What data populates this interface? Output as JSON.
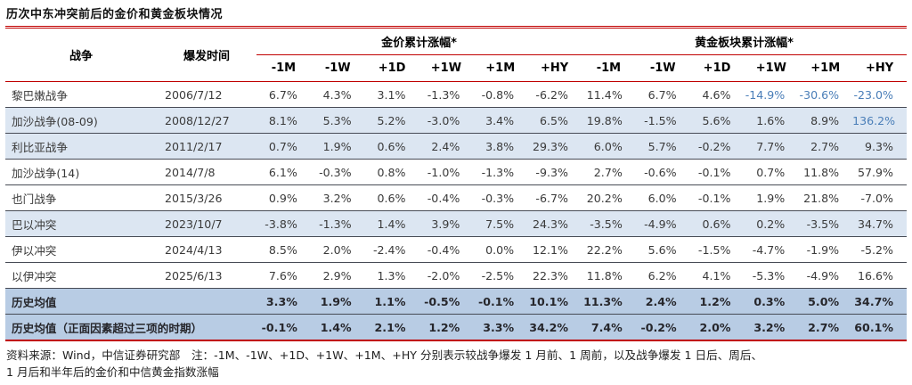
{
  "title": "历次中东冲突前后的金价和黄金板块情况",
  "colors": {
    "accent_red": "#C00000",
    "row_light_blue": "#DCE6F2",
    "row_medium_blue": "#B8CCE4",
    "highlight_blue_text": "#4A7EB8",
    "row_divider": "#474B55"
  },
  "table": {
    "war_header": "战争",
    "date_header": "爆发时间",
    "group1_header": "金价累计涨幅*",
    "group2_header": "黄金板块累计涨幅*",
    "period_columns": [
      "-1M",
      "-1W",
      "+1D",
      "+1W",
      "+1M",
      "+HY"
    ]
  },
  "chart_data": {
    "type": "table",
    "title": "历次中东冲突前后的金价和黄金板块情况",
    "column_groups": [
      "金价累计涨幅*",
      "黄金板块累计涨幅*"
    ],
    "period_columns": [
      "-1M",
      "-1W",
      "+1D",
      "+1W",
      "+1M",
      "+HY"
    ],
    "rows": [
      {
        "war": "黎巴嫩战争",
        "date": "2006/7/12",
        "shade": "none",
        "bold": false,
        "gold_price": [
          "6.7%",
          "4.3%",
          "3.1%",
          "-1.3%",
          "-0.8%",
          "-6.2%"
        ],
        "gold_sector": [
          "11.4%",
          "6.7%",
          "4.6%",
          "-14.9%",
          "-30.6%",
          "-23.0%"
        ],
        "price_blue": [],
        "sector_blue": [
          3,
          4,
          5
        ]
      },
      {
        "war": "加沙战争(08-09)",
        "date": "2008/12/27",
        "shade": "light",
        "bold": false,
        "gold_price": [
          "8.1%",
          "5.3%",
          "5.2%",
          "-3.0%",
          "3.4%",
          "6.5%"
        ],
        "gold_sector": [
          "19.8%",
          "-1.5%",
          "5.6%",
          "1.6%",
          "8.9%",
          "136.2%"
        ],
        "price_blue": [],
        "sector_blue": [
          5
        ]
      },
      {
        "war": "利比亚战争",
        "date": "2011/2/17",
        "shade": "light",
        "bold": false,
        "gold_price": [
          "0.7%",
          "1.9%",
          "0.6%",
          "2.4%",
          "3.8%",
          "29.3%"
        ],
        "gold_sector": [
          "6.0%",
          "5.7%",
          "-0.2%",
          "7.7%",
          "2.7%",
          "9.3%"
        ],
        "price_blue": [],
        "sector_blue": []
      },
      {
        "war": "加沙战争(14)",
        "date": "2014/7/8",
        "shade": "none",
        "bold": false,
        "gold_price": [
          "6.1%",
          "-0.3%",
          "0.8%",
          "-1.0%",
          "-1.3%",
          "-9.3%"
        ],
        "gold_sector": [
          "2.7%",
          "-0.6%",
          "-0.1%",
          "0.7%",
          "11.8%",
          "57.9%"
        ],
        "price_blue": [],
        "sector_blue": []
      },
      {
        "war": "也门战争",
        "date": "2015/3/26",
        "shade": "none",
        "bold": false,
        "gold_price": [
          "0.9%",
          "3.2%",
          "0.6%",
          "-0.4%",
          "-0.3%",
          "-6.7%"
        ],
        "gold_sector": [
          "20.2%",
          "6.0%",
          "-0.1%",
          "1.9%",
          "21.8%",
          "-7.0%"
        ],
        "price_blue": [],
        "sector_blue": []
      },
      {
        "war": "巴以冲突",
        "date": "2023/10/7",
        "shade": "light",
        "bold": false,
        "gold_price": [
          "-3.8%",
          "-1.3%",
          "1.4%",
          "3.9%",
          "7.5%",
          "24.3%"
        ],
        "gold_sector": [
          "-3.5%",
          "-4.9%",
          "0.6%",
          "0.2%",
          "-3.5%",
          "34.7%"
        ],
        "price_blue": [],
        "sector_blue": []
      },
      {
        "war": "伊以冲突",
        "date": "2024/4/13",
        "shade": "none",
        "bold": false,
        "gold_price": [
          "8.5%",
          "2.0%",
          "-2.4%",
          "-0.4%",
          "0.0%",
          "12.1%"
        ],
        "gold_sector": [
          "22.2%",
          "5.6%",
          "-1.5%",
          "-4.7%",
          "-1.9%",
          "-5.2%"
        ],
        "price_blue": [],
        "sector_blue": []
      },
      {
        "war": "以伊冲突",
        "date": "2025/6/13",
        "shade": "none",
        "bold": false,
        "gold_price": [
          "7.6%",
          "2.9%",
          "1.3%",
          "-2.0%",
          "-2.5%",
          "22.3%"
        ],
        "gold_sector": [
          "11.8%",
          "6.2%",
          "4.1%",
          "-5.3%",
          "-4.9%",
          "16.6%"
        ],
        "price_blue": [],
        "sector_blue": []
      },
      {
        "war": "历史均值",
        "date": "",
        "shade": "medium",
        "bold": true,
        "gold_price": [
          "3.3%",
          "1.9%",
          "1.1%",
          "-0.5%",
          "-0.1%",
          "10.1%"
        ],
        "gold_sector": [
          "11.3%",
          "2.4%",
          "1.2%",
          "0.3%",
          "5.0%",
          "34.7%"
        ],
        "price_blue": [],
        "sector_blue": []
      },
      {
        "war": "历史均值（正面因素超过三项的时期）",
        "date": "",
        "shade": "medium",
        "bold": true,
        "gold_price": [
          "-0.1%",
          "1.4%",
          "2.1%",
          "1.2%",
          "3.3%",
          "34.2%"
        ],
        "gold_sector": [
          "7.4%",
          "-0.2%",
          "2.0%",
          "3.2%",
          "2.7%",
          "60.1%"
        ],
        "price_blue": [],
        "sector_blue": []
      }
    ]
  },
  "footnote_line1": "资料来源：Wind，中信证券研究部　注：-1M、-1W、+1D、+1W、+1M、+HY 分别表示较战争爆发 1 月前、1 周前，以及战争爆发 1 日后、周后、",
  "footnote_line2": "1 月后和半年后的金价和中信黄金指数涨幅"
}
